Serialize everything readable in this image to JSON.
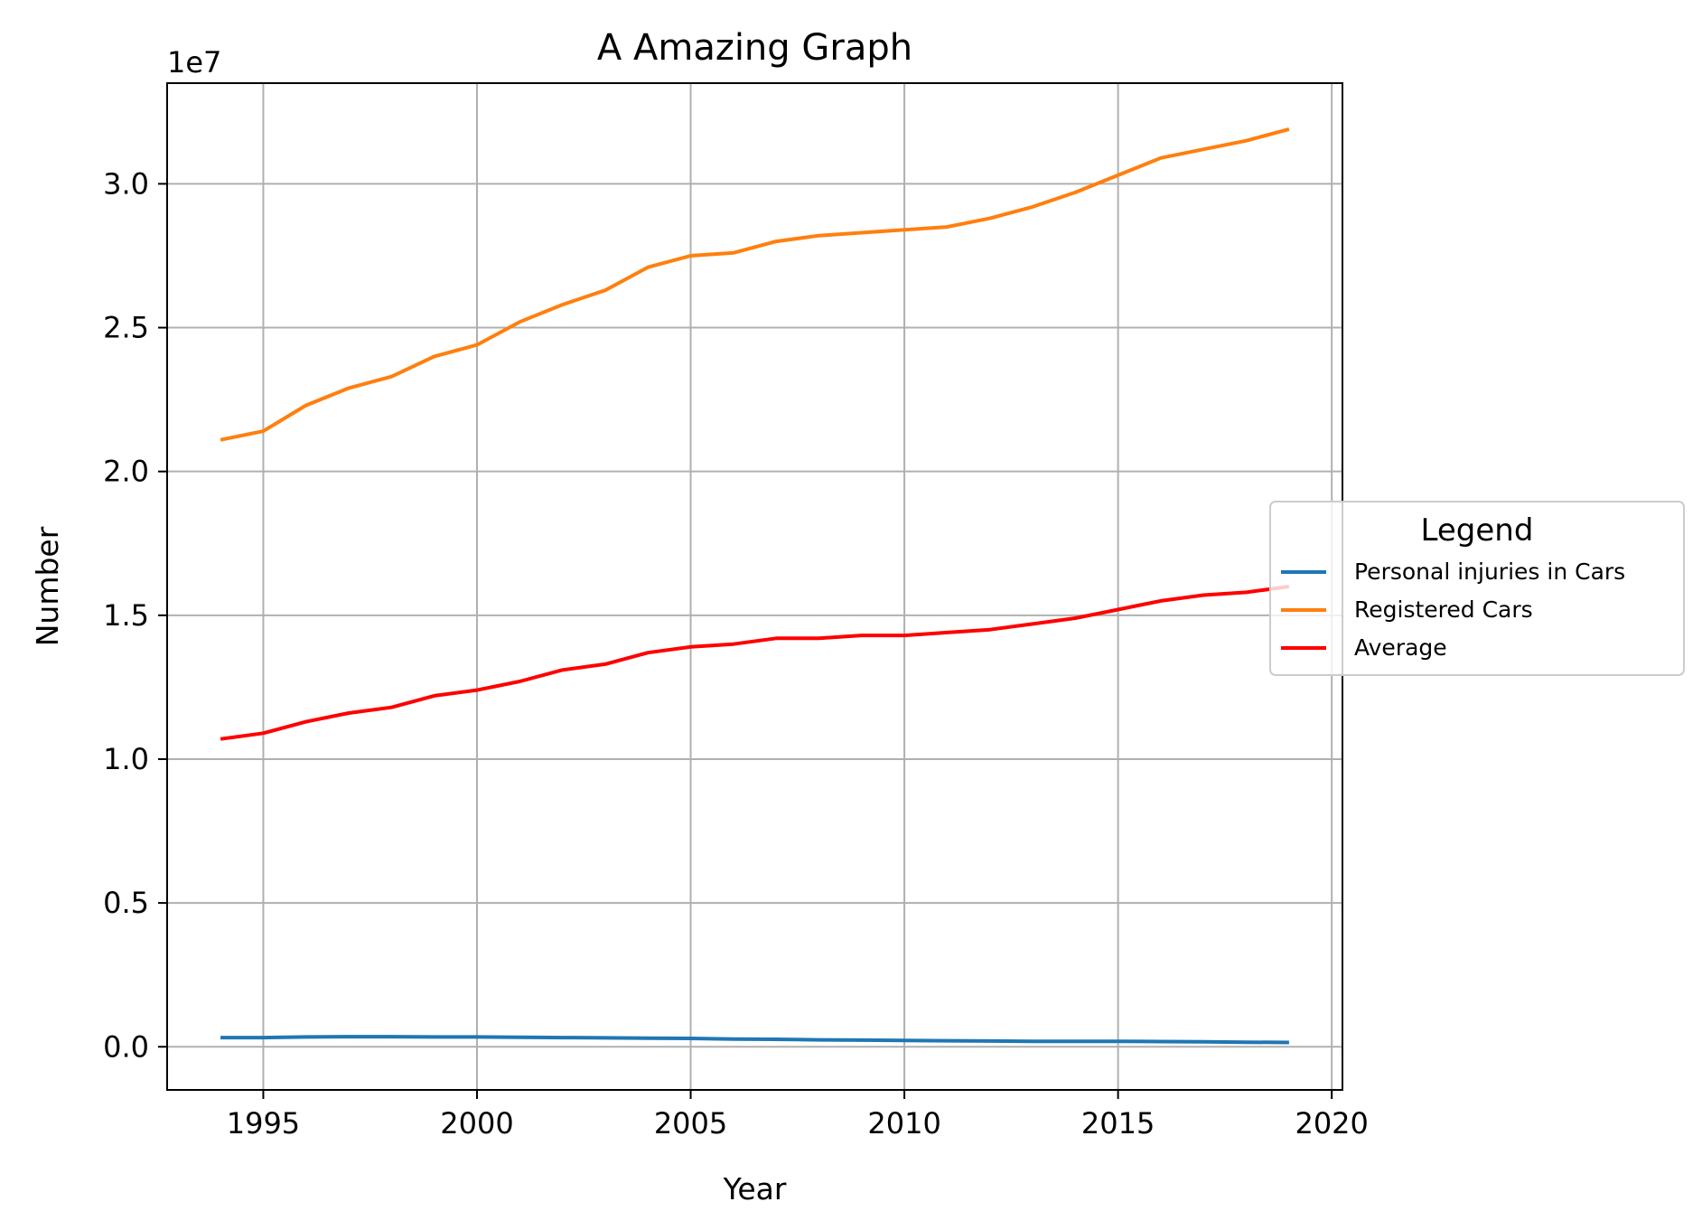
{
  "chart_data": {
    "type": "line",
    "title": "A Amazing Graph",
    "xlabel": "Year",
    "ylabel": "Number",
    "y_offset_label": "1e7",
    "xlim": [
      1992.75,
      2020.25
    ],
    "ylim": [
      -0.15,
      3.35
    ],
    "x_ticks": [
      1995,
      2000,
      2005,
      2010,
      2015,
      2020
    ],
    "y_ticks": [
      0.0,
      0.5,
      1.0,
      1.5,
      2.0,
      2.5,
      3.0
    ],
    "y_tick_labels": [
      "0.0",
      "0.5",
      "1.0",
      "1.5",
      "2.0",
      "2.5",
      "3.0"
    ],
    "grid": true,
    "legend": {
      "title": "Legend",
      "placement": "center-right, outside plot"
    },
    "x": [
      1994,
      1995,
      1996,
      1997,
      1998,
      1999,
      2000,
      2001,
      2002,
      2003,
      2004,
      2005,
      2006,
      2007,
      2008,
      2009,
      2010,
      2011,
      2012,
      2013,
      2014,
      2015,
      2016,
      2017,
      2018,
      2019
    ],
    "series": [
      {
        "name": "Personal injuries in Cars",
        "color": "#1f77b4",
        "values": [
          0.032,
          0.032,
          0.034,
          0.035,
          0.035,
          0.034,
          0.034,
          0.033,
          0.032,
          0.031,
          0.03,
          0.029,
          0.027,
          0.026,
          0.024,
          0.023,
          0.022,
          0.021,
          0.02,
          0.019,
          0.019,
          0.019,
          0.018,
          0.017,
          0.016,
          0.015
        ]
      },
      {
        "name": "Registered Cars",
        "color": "#ff7f0e",
        "values": [
          2.11,
          2.14,
          2.23,
          2.29,
          2.33,
          2.4,
          2.44,
          2.52,
          2.58,
          2.63,
          2.71,
          2.75,
          2.76,
          2.8,
          2.82,
          2.83,
          2.84,
          2.85,
          2.88,
          2.92,
          2.97,
          3.03,
          3.09,
          3.12,
          3.15,
          3.19
        ]
      },
      {
        "name": "Average",
        "color": "#ff0000",
        "values": [
          1.07,
          1.09,
          1.13,
          1.16,
          1.18,
          1.22,
          1.24,
          1.27,
          1.31,
          1.33,
          1.37,
          1.39,
          1.4,
          1.42,
          1.42,
          1.43,
          1.43,
          1.44,
          1.45,
          1.47,
          1.49,
          1.52,
          1.55,
          1.57,
          1.58,
          1.6
        ]
      }
    ]
  }
}
